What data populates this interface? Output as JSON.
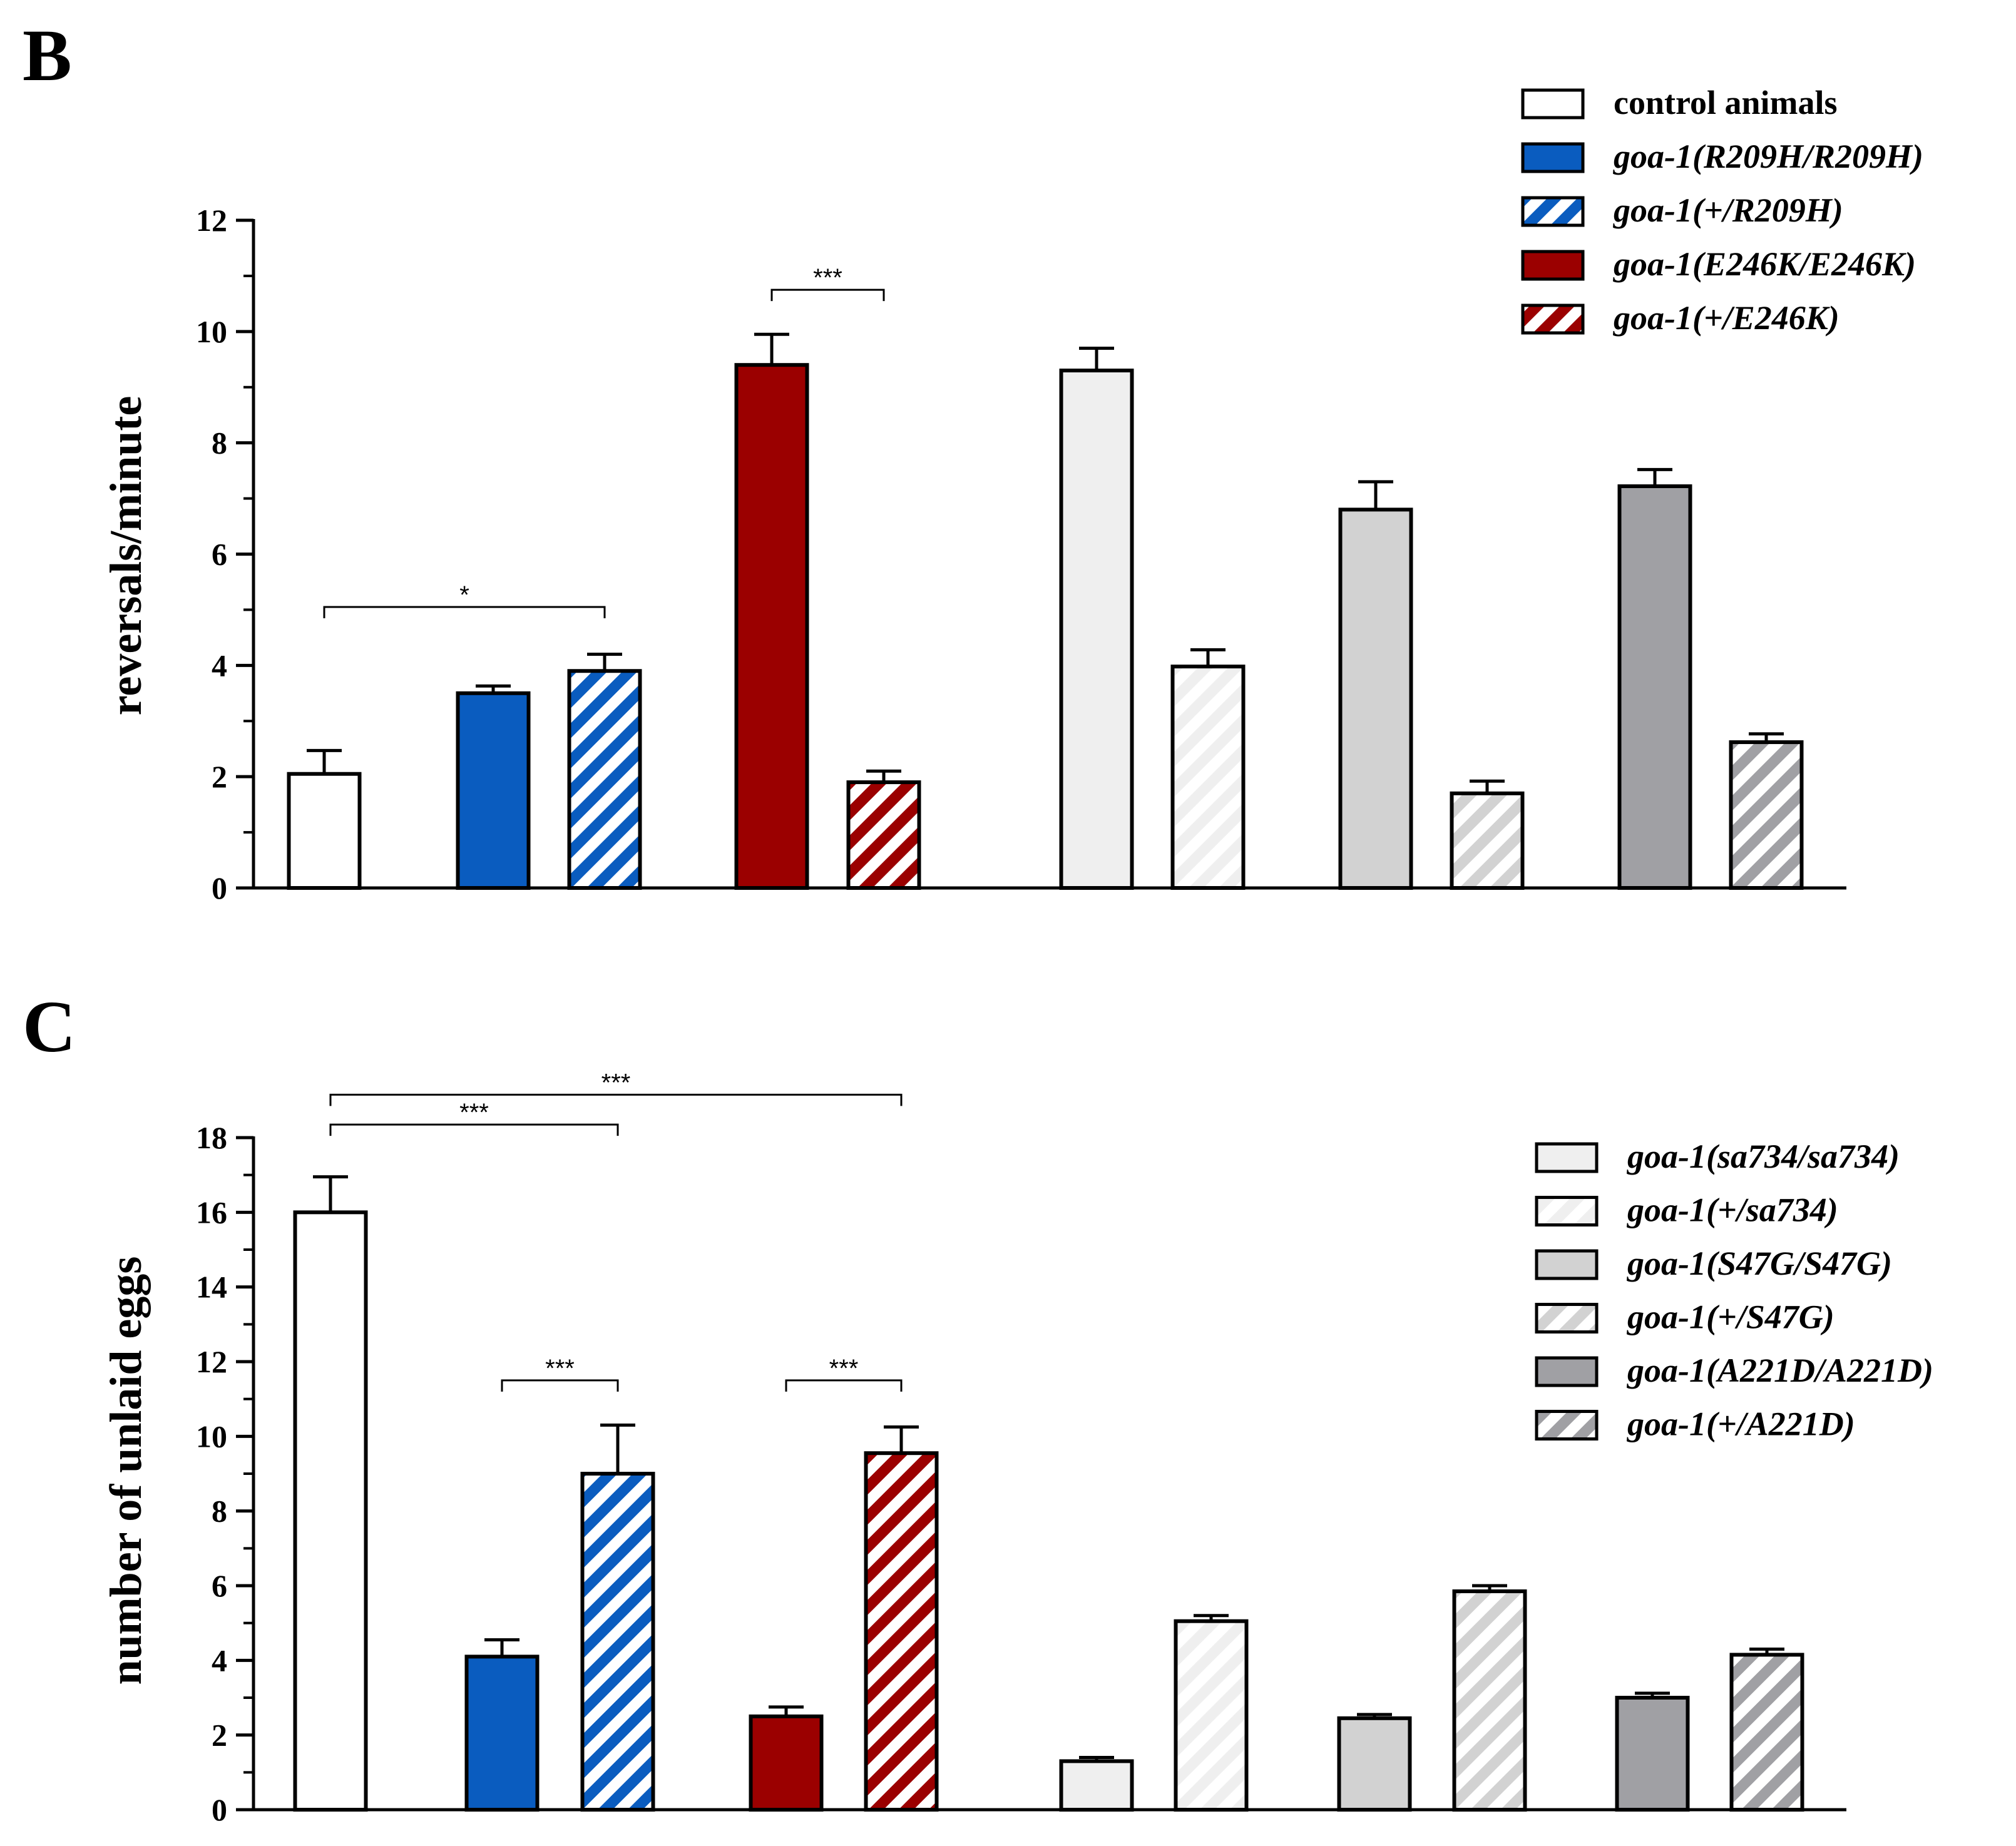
{
  "panels": {
    "B": {
      "letter": "B"
    },
    "C": {
      "letter": "C"
    }
  },
  "colors": {
    "control": "#ffffff",
    "r209h": "#0a5cbf",
    "e246k": "#9b0000",
    "sa734": "#efefef",
    "s47g": "#d2d2d2",
    "a221d": "#a0a0a4",
    "outline": "#000000"
  },
  "legend_top": [
    {
      "label": "control animals",
      "gene": "",
      "genotype": "",
      "fill": "control",
      "hatch": false
    },
    {
      "label": "",
      "gene": "goa-1",
      "genotype": "(R209H/R209H)",
      "fill": "r209h",
      "hatch": false
    },
    {
      "label": "",
      "gene": "goa-1",
      "genotype": "(+/R209H)",
      "fill": "r209h",
      "hatch": true
    },
    {
      "label": "",
      "gene": "goa-1",
      "genotype": "(E246K/E246K)",
      "fill": "e246k",
      "hatch": false
    },
    {
      "label": "",
      "gene": "goa-1",
      "genotype": "(+/E246K)",
      "fill": "e246k",
      "hatch": true
    }
  ],
  "legend_bottom": [
    {
      "gene": "goa-1",
      "genotype": "(sa734/sa734)",
      "fill": "sa734",
      "hatch": false
    },
    {
      "gene": "goa-1",
      "genotype": "(+/sa734)",
      "fill": "sa734",
      "hatch": true
    },
    {
      "gene": "goa-1",
      "genotype": "(S47G/S47G)",
      "fill": "s47g",
      "hatch": false
    },
    {
      "gene": "goa-1",
      "genotype": "(+/S47G)",
      "fill": "s47g",
      "hatch": true
    },
    {
      "gene": "goa-1",
      "genotype": "(A221D/A221D)",
      "fill": "a221d",
      "hatch": false
    },
    {
      "gene": "goa-1",
      "genotype": "(+/A221D)",
      "fill": "a221d",
      "hatch": true
    }
  ],
  "chart_data": [
    {
      "panel": "B",
      "type": "bar",
      "ylabel": "reversals/minute",
      "xlabel": "",
      "ylim": [
        0,
        12
      ],
      "yticks": [
        0,
        2,
        4,
        6,
        8,
        10,
        12
      ],
      "categories": [
        "control animals",
        "goa-1(R209H/R209H)",
        "goa-1(+/R209H)",
        "goa-1(E246K/E246K)",
        "goa-1(+/E246K)",
        "goa-1(sa734/sa734)",
        "goa-1(+/sa734)",
        "goa-1(S47G/S47G)",
        "goa-1(+/S47G)",
        "goa-1(A221D/A221D)",
        "goa-1(+/A221D)"
      ],
      "values": [
        2.05,
        3.5,
        3.9,
        9.4,
        1.9,
        9.3,
        3.98,
        6.8,
        1.7,
        7.22,
        2.62
      ],
      "errors": [
        0.42,
        0.13,
        0.3,
        0.55,
        0.2,
        0.4,
        0.3,
        0.5,
        0.22,
        0.3,
        0.15
      ],
      "fills": [
        "control",
        "r209h",
        "r209h",
        "e246k",
        "e246k",
        "sa734",
        "sa734",
        "s47g",
        "s47g",
        "a221d",
        "a221d"
      ],
      "hatched": [
        false,
        false,
        true,
        false,
        true,
        false,
        true,
        false,
        true,
        false,
        true
      ],
      "significance": [
        {
          "from": 0,
          "to": 2,
          "label": "*",
          "level": 5.05
        },
        {
          "from": 3,
          "to": 4,
          "label": "***",
          "level": 10.75
        }
      ]
    },
    {
      "panel": "C",
      "type": "bar",
      "ylabel": "number of unlaid eggs",
      "xlabel": "",
      "ylim": [
        0,
        18
      ],
      "yticks": [
        0,
        2,
        4,
        6,
        8,
        10,
        12,
        14,
        16,
        18
      ],
      "categories": [
        "control animals",
        "goa-1(R209H/R209H)",
        "goa-1(+/R209H)",
        "goa-1(E246K/E246K)",
        "goa-1(+/E246K)",
        "goa-1(sa734/sa734)",
        "goa-1(+/sa734)",
        "goa-1(S47G/S47G)",
        "goa-1(+/S47G)",
        "goa-1(A221D/A221D)",
        "goa-1(+/A221D)"
      ],
      "values": [
        16.0,
        4.1,
        9.0,
        2.5,
        9.55,
        1.3,
        5.05,
        2.45,
        5.85,
        3.0,
        4.15
      ],
      "errors": [
        0.95,
        0.45,
        1.3,
        0.25,
        0.7,
        0.1,
        0.15,
        0.1,
        0.15,
        0.12,
        0.15
      ],
      "fills": [
        "control",
        "r209h",
        "r209h",
        "e246k",
        "e246k",
        "sa734",
        "sa734",
        "s47g",
        "s47g",
        "a221d",
        "a221d"
      ],
      "hatched": [
        false,
        false,
        true,
        false,
        true,
        false,
        true,
        false,
        true,
        false,
        true
      ],
      "significance": [
        {
          "from": 0,
          "to": 4,
          "label": "***",
          "level": 19.15
        },
        {
          "from": 0,
          "to": 2,
          "label": "***",
          "level": 18.35
        },
        {
          "from": 1,
          "to": 2,
          "label": "***",
          "level": 11.5
        },
        {
          "from": 3,
          "to": 4,
          "label": "***",
          "level": 11.5
        }
      ]
    }
  ]
}
